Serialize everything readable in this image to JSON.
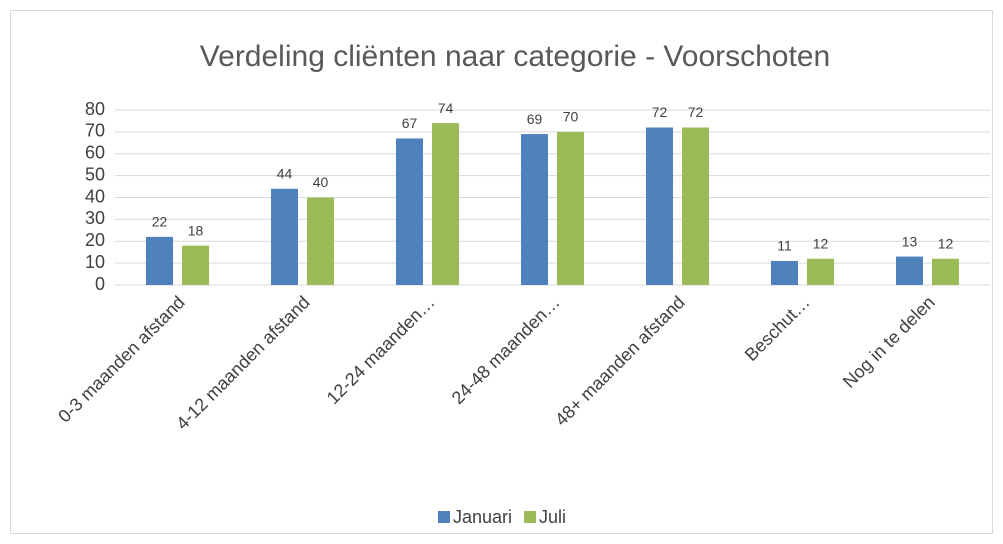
{
  "chart_data": {
    "type": "bar",
    "title": "Verdeling cliënten naar categorie - Voorschoten",
    "categories": [
      "0-3 maanden afstand",
      "4-12 maanden afstand",
      "12-24 maanden…",
      "24-48 maanden…",
      "48+ maanden afstand",
      "Beschut…",
      "Nog in te delen"
    ],
    "series": [
      {
        "name": "Januari",
        "color": "#4f81bd",
        "values": [
          22,
          44,
          67,
          69,
          72,
          11,
          13
        ]
      },
      {
        "name": "Juli",
        "color": "#9bbb59",
        "values": [
          18,
          40,
          74,
          70,
          72,
          12,
          12
        ]
      }
    ],
    "ylim": [
      0,
      80
    ],
    "yticks": [
      0,
      10,
      20,
      30,
      40,
      50,
      60,
      70,
      80
    ],
    "grid": true,
    "legend": "bottom"
  }
}
